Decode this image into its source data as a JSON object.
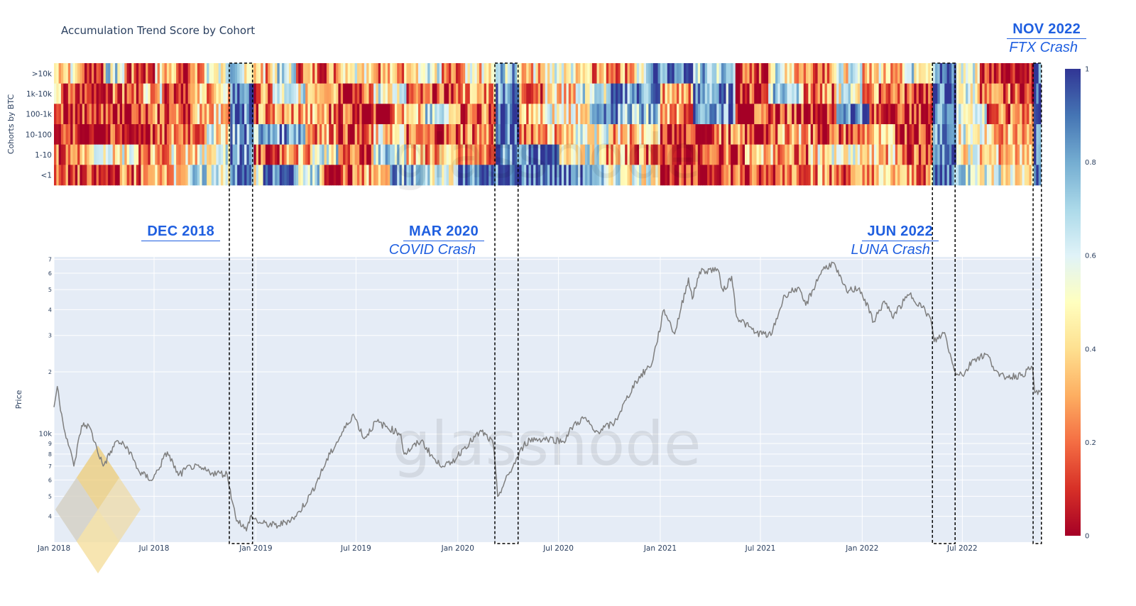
{
  "page": {
    "title": "Accumulation Trend Score by Cohort",
    "watermark": "glassnode"
  },
  "annotations": [
    {
      "id": "dec-2018",
      "label": "DEC 2018",
      "sub": "",
      "start": "2018-11-14",
      "end": "2018-12-26"
    },
    {
      "id": "mar-2020",
      "label": "MAR 2020",
      "sub": "COVID Crash",
      "start": "2020-03-08",
      "end": "2020-04-19"
    },
    {
      "id": "jun-2022",
      "label": "JUN 2022",
      "sub": "LUNA Crash",
      "start": "2022-05-08",
      "end": "2022-06-18"
    },
    {
      "id": "nov-2022",
      "label": "NOV 2022",
      "sub": "FTX Crash",
      "start": "2022-11-06",
      "end": "2022-11-21"
    }
  ],
  "chart_data": [
    {
      "type": "heatmap",
      "title": "Accumulation Trend Score by Cohort",
      "ylabel": "Cohorts by BTC",
      "cohorts": [
        ">10k",
        "1k-10k",
        "100-1k",
        "10-100",
        "1-10",
        "<1"
      ],
      "x_range": [
        "2018-01-01",
        "2022-11-20"
      ],
      "zlim": [
        0,
        1
      ],
      "colorbar_ticks": [
        0,
        0.2,
        0.4,
        0.6,
        0.8,
        1
      ],
      "colorscale": [
        "#a50026",
        "#d73027",
        "#f46d43",
        "#fdae61",
        "#fee090",
        "#ffffbf",
        "#e0f3f8",
        "#abd9e9",
        "#74add1",
        "#4575b4",
        "#313695"
      ],
      "segments": {
        ">10k": [
          [
            "2018-01-01",
            0.45
          ],
          [
            "2018-02-15",
            0.15
          ],
          [
            "2018-04-01",
            0.6
          ],
          [
            "2018-05-10",
            0.15
          ],
          [
            "2018-07-01",
            0.35
          ],
          [
            "2018-08-15",
            0.2
          ],
          [
            "2018-10-01",
            0.55
          ],
          [
            "2018-11-14",
            0.6
          ],
          [
            "2018-12-26",
            0.35
          ],
          [
            "2019-02-01",
            0.6
          ],
          [
            "2019-03-15",
            0.25
          ],
          [
            "2019-06-01",
            0.55
          ],
          [
            "2019-08-01",
            0.3
          ],
          [
            "2019-10-01",
            0.55
          ],
          [
            "2019-12-01",
            0.1
          ],
          [
            "2020-01-15",
            0.4
          ],
          [
            "2020-03-08",
            0.7
          ],
          [
            "2020-04-19",
            0.4
          ],
          [
            "2020-06-01",
            0.5
          ],
          [
            "2020-09-01",
            0.3
          ],
          [
            "2020-11-15",
            0.55
          ],
          [
            "2020-12-15",
            0.9
          ],
          [
            "2021-03-01",
            0.7
          ],
          [
            "2021-05-15",
            0.1
          ],
          [
            "2021-07-15",
            0.55
          ],
          [
            "2021-09-01",
            0.3
          ],
          [
            "2021-11-01",
            0.5
          ],
          [
            "2022-01-01",
            0.4
          ],
          [
            "2022-03-15",
            0.6
          ],
          [
            "2022-05-08",
            0.85
          ],
          [
            "2022-06-18",
            0.55
          ],
          [
            "2022-08-01",
            0.1
          ],
          [
            "2022-10-01",
            0.05
          ],
          [
            "2022-11-06",
            0.95
          ]
        ],
        "1k-10k": [
          [
            "2018-01-01",
            0.3
          ],
          [
            "2018-01-20",
            0.08
          ],
          [
            "2018-04-01",
            0.15
          ],
          [
            "2018-06-01",
            0.4
          ],
          [
            "2018-07-20",
            0.2
          ],
          [
            "2018-09-15",
            0.35
          ],
          [
            "2018-11-14",
            0.88
          ],
          [
            "2018-12-26",
            0.2
          ],
          [
            "2019-02-01",
            0.55
          ],
          [
            "2019-04-01",
            0.45
          ],
          [
            "2019-06-01",
            0.15
          ],
          [
            "2019-08-01",
            0.55
          ],
          [
            "2019-10-01",
            0.1
          ],
          [
            "2020-01-01",
            0.3
          ],
          [
            "2020-03-08",
            0.9
          ],
          [
            "2020-04-19",
            0.25
          ],
          [
            "2020-06-01",
            0.4
          ],
          [
            "2020-08-01",
            0.6
          ],
          [
            "2020-10-01",
            0.85
          ],
          [
            "2021-01-01",
            0.3
          ],
          [
            "2021-03-01",
            0.8
          ],
          [
            "2021-05-15",
            0.1
          ],
          [
            "2021-07-15",
            0.75
          ],
          [
            "2021-09-15",
            0.2
          ],
          [
            "2021-11-15",
            0.55
          ],
          [
            "2022-01-01",
            0.25
          ],
          [
            "2022-03-15",
            0.15
          ],
          [
            "2022-05-08",
            0.92
          ],
          [
            "2022-06-18",
            0.55
          ],
          [
            "2022-08-01",
            0.15
          ],
          [
            "2022-10-01",
            0.1
          ],
          [
            "2022-11-06",
            0.95
          ]
        ],
        "100-1k": [
          [
            "2018-01-01",
            0.3
          ],
          [
            "2018-01-20",
            0.05
          ],
          [
            "2018-05-01",
            0.1
          ],
          [
            "2018-07-01",
            0.2
          ],
          [
            "2018-09-15",
            0.4
          ],
          [
            "2018-11-14",
            0.85
          ],
          [
            "2018-12-26",
            0.25
          ],
          [
            "2019-03-01",
            0.3
          ],
          [
            "2019-05-15",
            0.2
          ],
          [
            "2019-07-01",
            0.05
          ],
          [
            "2019-09-01",
            0.3
          ],
          [
            "2019-11-01",
            0.6
          ],
          [
            "2020-01-01",
            0.2
          ],
          [
            "2020-03-08",
            0.92
          ],
          [
            "2020-04-19",
            0.35
          ],
          [
            "2020-06-01",
            0.5
          ],
          [
            "2020-09-01",
            0.75
          ],
          [
            "2021-01-01",
            0.3
          ],
          [
            "2021-03-01",
            0.85
          ],
          [
            "2021-05-15",
            0.1
          ],
          [
            "2021-08-01",
            0.15
          ],
          [
            "2021-10-01",
            0.05
          ],
          [
            "2021-11-15",
            0.92
          ],
          [
            "2022-01-15",
            0.1
          ],
          [
            "2022-03-15",
            0.05
          ],
          [
            "2022-05-08",
            0.92
          ],
          [
            "2022-06-18",
            0.6
          ],
          [
            "2022-08-15",
            0.15
          ],
          [
            "2022-10-01",
            0.3
          ],
          [
            "2022-11-06",
            0.95
          ]
        ],
        "10-100": [
          [
            "2018-01-01",
            0.2
          ],
          [
            "2018-01-20",
            0.05
          ],
          [
            "2018-06-01",
            0.1
          ],
          [
            "2018-08-01",
            0.25
          ],
          [
            "2018-10-01",
            0.5
          ],
          [
            "2018-11-14",
            0.8
          ],
          [
            "2018-12-26",
            0.75
          ],
          [
            "2019-02-01",
            0.85
          ],
          [
            "2019-04-01",
            0.3
          ],
          [
            "2019-06-01",
            0.1
          ],
          [
            "2019-08-01",
            0.4
          ],
          [
            "2019-10-01",
            0.15
          ],
          [
            "2020-01-01",
            0.25
          ],
          [
            "2020-03-08",
            0.9
          ],
          [
            "2020-04-19",
            0.3
          ],
          [
            "2020-06-01",
            0.35
          ],
          [
            "2020-08-01",
            0.55
          ],
          [
            "2020-10-01",
            0.35
          ],
          [
            "2021-01-01",
            0.05
          ],
          [
            "2021-04-01",
            0.2
          ],
          [
            "2021-06-01",
            0.08
          ],
          [
            "2021-08-01",
            0.35
          ],
          [
            "2021-10-01",
            0.15
          ],
          [
            "2022-01-01",
            0.3
          ],
          [
            "2022-03-01",
            0.15
          ],
          [
            "2022-05-08",
            0.9
          ],
          [
            "2022-06-18",
            0.5
          ],
          [
            "2022-08-15",
            0.35
          ],
          [
            "2022-10-01",
            0.4
          ],
          [
            "2022-11-06",
            0.95
          ]
        ],
        "1-10": [
          [
            "2018-01-01",
            0.15
          ],
          [
            "2018-02-01",
            0.3
          ],
          [
            "2018-03-15",
            0.5
          ],
          [
            "2018-06-01",
            0.3
          ],
          [
            "2018-08-01",
            0.45
          ],
          [
            "2018-10-15",
            0.65
          ],
          [
            "2018-11-14",
            0.85
          ],
          [
            "2018-12-26",
            0.1
          ],
          [
            "2019-02-15",
            0.35
          ],
          [
            "2019-04-15",
            0.6
          ],
          [
            "2019-06-01",
            0.15
          ],
          [
            "2019-08-01",
            0.7
          ],
          [
            "2019-10-01",
            0.3
          ],
          [
            "2020-01-01",
            0.2
          ],
          [
            "2020-03-08",
            0.85
          ],
          [
            "2020-04-19",
            0.9
          ],
          [
            "2020-07-01",
            0.55
          ],
          [
            "2020-09-15",
            0.3
          ],
          [
            "2020-11-01",
            0.25
          ],
          [
            "2021-01-01",
            0.05
          ],
          [
            "2021-03-15",
            0.15
          ],
          [
            "2021-06-01",
            0.35
          ],
          [
            "2021-08-01",
            0.2
          ],
          [
            "2021-10-01",
            0.45
          ],
          [
            "2022-01-01",
            0.35
          ],
          [
            "2022-03-15",
            0.15
          ],
          [
            "2022-05-08",
            0.9
          ],
          [
            "2022-06-18",
            0.5
          ],
          [
            "2022-08-01",
            0.35
          ],
          [
            "2022-10-15",
            0.45
          ],
          [
            "2022-11-06",
            0.95
          ]
        ],
        "<1": [
          [
            "2018-01-01",
            0.1
          ],
          [
            "2018-02-15",
            0.05
          ],
          [
            "2018-05-01",
            0.2
          ],
          [
            "2018-07-01",
            0.4
          ],
          [
            "2018-09-01",
            0.6
          ],
          [
            "2018-11-14",
            0.9
          ],
          [
            "2018-12-26",
            0.45
          ],
          [
            "2019-01-15",
            0.95
          ],
          [
            "2019-03-15",
            0.6
          ],
          [
            "2019-05-01",
            0.15
          ],
          [
            "2019-07-01",
            0.3
          ],
          [
            "2019-09-01",
            0.75
          ],
          [
            "2019-11-01",
            0.6
          ],
          [
            "2020-01-01",
            0.92
          ],
          [
            "2020-03-08",
            0.9
          ],
          [
            "2020-04-19",
            0.92
          ],
          [
            "2020-07-01",
            0.85
          ],
          [
            "2020-09-01",
            0.6
          ],
          [
            "2020-11-01",
            0.55
          ],
          [
            "2021-01-01",
            0.05
          ],
          [
            "2021-04-01",
            0.2
          ],
          [
            "2021-06-01",
            0.1
          ],
          [
            "2021-08-01",
            0.3
          ],
          [
            "2021-11-01",
            0.2
          ],
          [
            "2022-01-15",
            0.35
          ],
          [
            "2022-03-15",
            0.25
          ],
          [
            "2022-05-08",
            0.9
          ],
          [
            "2022-06-18",
            0.7
          ],
          [
            "2022-08-01",
            0.55
          ],
          [
            "2022-10-01",
            0.45
          ],
          [
            "2022-11-06",
            0.95
          ]
        ]
      }
    },
    {
      "type": "line",
      "ylabel": "Price",
      "yscale": "log",
      "x_range": [
        "2018-01-01",
        "2022-11-20"
      ],
      "ylim": [
        3000,
        72000
      ],
      "x_ticks": [
        "Jan 2018",
        "Jul 2018",
        "Jan 2019",
        "Jul 2019",
        "Jan 2020",
        "Jul 2020",
        "Jan 2021",
        "Jul 2021",
        "Jan 2022",
        "Jul 2022"
      ],
      "y_ticks": [
        "4",
        "5",
        "6",
        "7",
        "8",
        "9",
        "10k",
        "2",
        "3",
        "4",
        "5",
        "6",
        "7"
      ],
      "y_tick_values": [
        4000,
        5000,
        6000,
        7000,
        8000,
        9000,
        10000,
        20000,
        30000,
        40000,
        50000,
        60000,
        70000
      ],
      "line_color": "#7f7f7f",
      "series": [
        {
          "x": [
            "2018-01-01",
            "2018-01-07",
            "2018-01-17",
            "2018-02-06",
            "2018-02-20",
            "2018-03-05",
            "2018-03-31",
            "2018-04-25",
            "2018-05-15",
            "2018-06-05",
            "2018-06-28",
            "2018-07-25",
            "2018-08-14",
            "2018-09-05",
            "2018-10-15",
            "2018-11-10",
            "2018-11-25",
            "2018-12-15",
            "2018-12-22",
            "2019-01-10",
            "2019-02-10",
            "2019-03-15",
            "2019-04-10",
            "2019-05-15",
            "2019-06-26",
            "2019-07-16",
            "2019-08-06",
            "2019-09-20",
            "2019-09-26",
            "2019-10-27",
            "2019-11-25",
            "2019-12-18",
            "2020-01-14",
            "2020-02-13",
            "2020-03-05",
            "2020-03-13",
            "2020-04-10",
            "2020-04-29",
            "2020-05-10",
            "2020-06-15",
            "2020-07-10",
            "2020-07-28",
            "2020-08-17",
            "2020-09-05",
            "2020-10-10",
            "2020-10-21",
            "2020-11-18",
            "2020-12-17",
            "2021-01-08",
            "2021-01-27",
            "2021-02-21",
            "2021-02-28",
            "2021-03-13",
            "2021-04-14",
            "2021-04-25",
            "2021-05-10",
            "2021-05-19",
            "2021-06-22",
            "2021-07-20",
            "2021-08-14",
            "2021-09-06",
            "2021-09-21",
            "2021-10-20",
            "2021-11-09",
            "2021-11-26",
            "2021-12-04",
            "2021-12-27",
            "2022-01-22",
            "2022-02-10",
            "2022-02-24",
            "2022-03-28",
            "2022-04-20",
            "2022-05-05",
            "2022-05-11",
            "2022-05-30",
            "2022-06-13",
            "2022-06-18",
            "2022-07-05",
            "2022-07-20",
            "2022-08-14",
            "2022-09-06",
            "2022-09-20",
            "2022-10-15",
            "2022-11-05",
            "2022-11-09",
            "2022-11-20"
          ],
          "y": [
            13500,
            17000,
            11500,
            7000,
            11000,
            11000,
            7000,
            9300,
            8500,
            6500,
            6000,
            8200,
            6300,
            7000,
            6500,
            6400,
            4000,
            3400,
            4000,
            3700,
            3600,
            4000,
            5100,
            8000,
            12500,
            9500,
            11500,
            10000,
            8000,
            9300,
            7200,
            7100,
            8700,
            10300,
            9000,
            5000,
            7000,
            8800,
            9400,
            9500,
            9200,
            11000,
            12000,
            10200,
            11300,
            12900,
            18000,
            22000,
            40000,
            30500,
            57000,
            45000,
            61000,
            63000,
            49000,
            58000,
            37000,
            31000,
            30000,
            47000,
            51000,
            42000,
            62000,
            67500,
            54000,
            49000,
            51000,
            35000,
            44000,
            37000,
            47500,
            41000,
            36000,
            28000,
            31000,
            22000,
            20000,
            19500,
            23000,
            24300,
            19000,
            19000,
            19200,
            21000,
            15800,
            16200
          ]
        }
      ]
    }
  ]
}
